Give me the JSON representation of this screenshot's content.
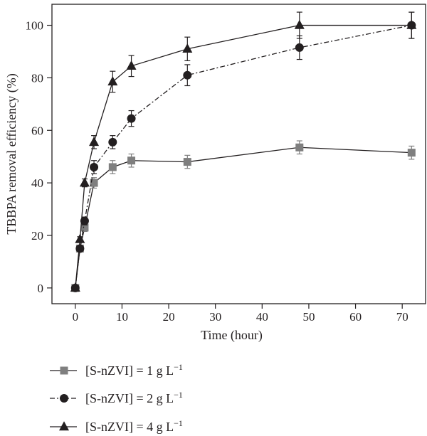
{
  "chart_data": {
    "type": "line",
    "xlabel": "Time (hour)",
    "ylabel": "TBBPA removal efficiency (%)",
    "xlim": [
      -5,
      75
    ],
    "ylim": [
      -6,
      108
    ],
    "xticks": [
      0,
      10,
      20,
      30,
      40,
      50,
      60,
      70
    ],
    "yticks": [
      0,
      20,
      40,
      60,
      80,
      100
    ],
    "x": [
      0,
      1,
      2,
      4,
      8,
      12,
      24,
      48,
      72
    ],
    "series": [
      {
        "name": "1 g",
        "label_text": "[S-nZVI] = 1 g L",
        "label_sup": "−1",
        "marker": "square",
        "line": "solid",
        "color": "#7f7f7f",
        "values": [
          0,
          15,
          23,
          40,
          46,
          48.5,
          48,
          53.5,
          51.5
        ],
        "errors": [
          0,
          1,
          1.5,
          2,
          2.5,
          2.5,
          2.5,
          2.5,
          2.5
        ]
      },
      {
        "name": "2 g",
        "label_text": "[S-nZVI] = 2 g L",
        "label_sup": "−1",
        "marker": "circle",
        "line": "dashdot",
        "color": "#231f20",
        "values": [
          0,
          15,
          25.5,
          46,
          55.5,
          64.5,
          81,
          91.5,
          100
        ],
        "errors": [
          0,
          1,
          1.5,
          2.5,
          2.5,
          3,
          4,
          4.5,
          5
        ]
      },
      {
        "name": "4 g",
        "label_text": "[S-nZVI] = 4 g L",
        "label_sup": "−1",
        "marker": "triangle",
        "line": "solid",
        "color": "#231f20",
        "values": [
          0,
          18.5,
          40,
          55.5,
          78.5,
          84.5,
          91,
          100,
          100
        ],
        "errors": [
          0,
          1,
          1.5,
          2.5,
          4,
          4,
          4.5,
          5,
          5
        ]
      }
    ],
    "legend_position": "below"
  }
}
